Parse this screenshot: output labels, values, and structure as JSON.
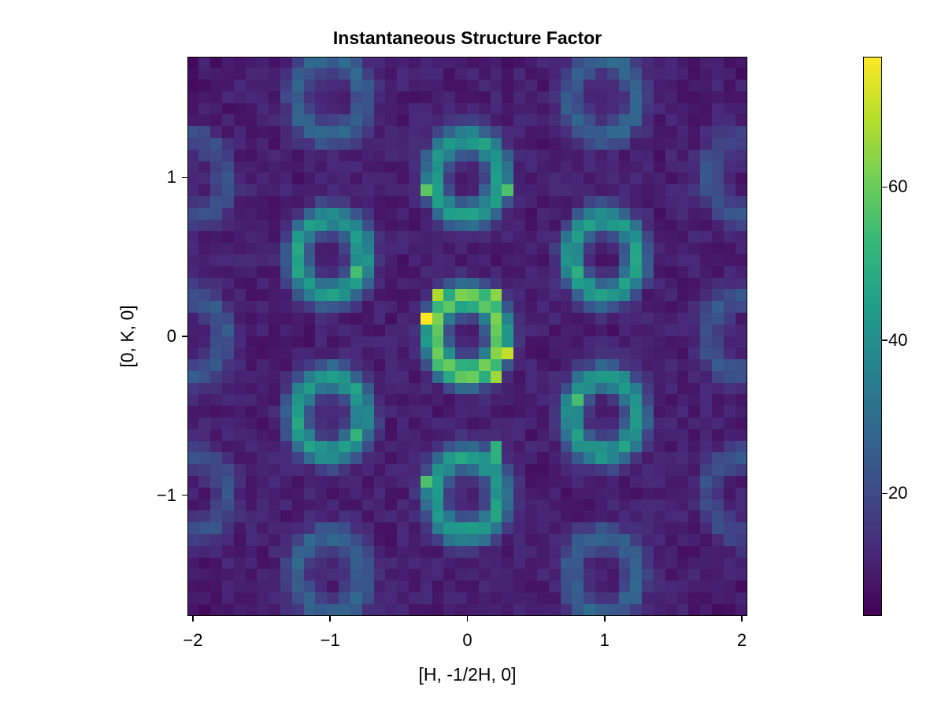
{
  "chart_data": {
    "type": "heatmap",
    "title": "Instantaneous Structure Factor",
    "xlabel": "[H, -1/2H, 0]",
    "ylabel": "[0, K, 0]",
    "xlim": [
      -2.04,
      2.04
    ],
    "ylim": [
      -1.76,
      1.76
    ],
    "grid": false,
    "colormap": "viridis",
    "clim": [
      4,
      77
    ],
    "resolution": [
      48,
      48
    ],
    "x_ticks": [
      {
        "value": -2,
        "label": "−2"
      },
      {
        "value": -1,
        "label": "−1"
      },
      {
        "value": 0,
        "label": "0"
      },
      {
        "value": 1,
        "label": "1"
      },
      {
        "value": 2,
        "label": "2"
      }
    ],
    "y_ticks": [
      {
        "value": 1,
        "label": "1"
      },
      {
        "value": 0,
        "label": "0"
      },
      {
        "value": -1,
        "label": "−1"
      }
    ],
    "colorbar_ticks": [
      {
        "value": 60,
        "label": "60"
      },
      {
        "value": 40,
        "label": "40"
      },
      {
        "value": 20,
        "label": "20"
      }
    ],
    "background_level": 10,
    "rings": [
      {
        "center": [
          0,
          0
        ],
        "radius": 0.24,
        "peak": 62
      },
      {
        "center": [
          0,
          1
        ],
        "radius": 0.24,
        "peak": 45
      },
      {
        "center": [
          0,
          -1
        ],
        "radius": 0.24,
        "peak": 45
      },
      {
        "center": [
          1,
          0.5
        ],
        "radius": 0.24,
        "peak": 45
      },
      {
        "center": [
          -1,
          0.5
        ],
        "radius": 0.24,
        "peak": 45
      },
      {
        "center": [
          1,
          -0.5
        ],
        "radius": 0.24,
        "peak": 45
      },
      {
        "center": [
          -1,
          -0.5
        ],
        "radius": 0.24,
        "peak": 45
      },
      {
        "center": [
          -1,
          1.5
        ],
        "radius": 0.24,
        "peak": 27
      },
      {
        "center": [
          1,
          1.5
        ],
        "radius": 0.24,
        "peak": 27
      },
      {
        "center": [
          -1,
          -1.5
        ],
        "radius": 0.24,
        "peak": 27
      },
      {
        "center": [
          1,
          -1.5
        ],
        "radius": 0.24,
        "peak": 27
      },
      {
        "center": [
          -2,
          0
        ],
        "radius": 0.24,
        "peak": 24
      },
      {
        "center": [
          2,
          0
        ],
        "radius": 0.24,
        "peak": 24
      },
      {
        "center": [
          -2,
          1
        ],
        "radius": 0.24,
        "peak": 22
      },
      {
        "center": [
          2,
          1
        ],
        "radius": 0.24,
        "peak": 22
      },
      {
        "center": [
          -2,
          -1
        ],
        "radius": 0.24,
        "peak": 22
      },
      {
        "center": [
          2,
          -1
        ],
        "radius": 0.24,
        "peak": 22
      }
    ],
    "hot_spots": [
      {
        "x": -0.31,
        "y": 0.09,
        "value": 77
      },
      {
        "x": 0.31,
        "y": -0.09,
        "value": 70
      },
      {
        "x": -0.18,
        "y": 0.26,
        "value": 68
      },
      {
        "x": 0.18,
        "y": -0.26,
        "value": 66
      },
      {
        "x": 0.18,
        "y": 0.26,
        "value": 64
      },
      {
        "x": -0.31,
        "y": 0.91,
        "value": 58
      },
      {
        "x": 0.31,
        "y": 0.91,
        "value": 56
      },
      {
        "x": -0.31,
        "y": -0.91,
        "value": 56
      },
      {
        "x": -0.78,
        "y": 0.38,
        "value": 55
      },
      {
        "x": 0.78,
        "y": -0.38,
        "value": 55
      },
      {
        "x": -0.78,
        "y": -0.63,
        "value": 52
      },
      {
        "x": 0.78,
        "y": 0.38,
        "value": 50
      },
      {
        "x": 0.18,
        "y": -0.73,
        "value": 50
      }
    ]
  }
}
